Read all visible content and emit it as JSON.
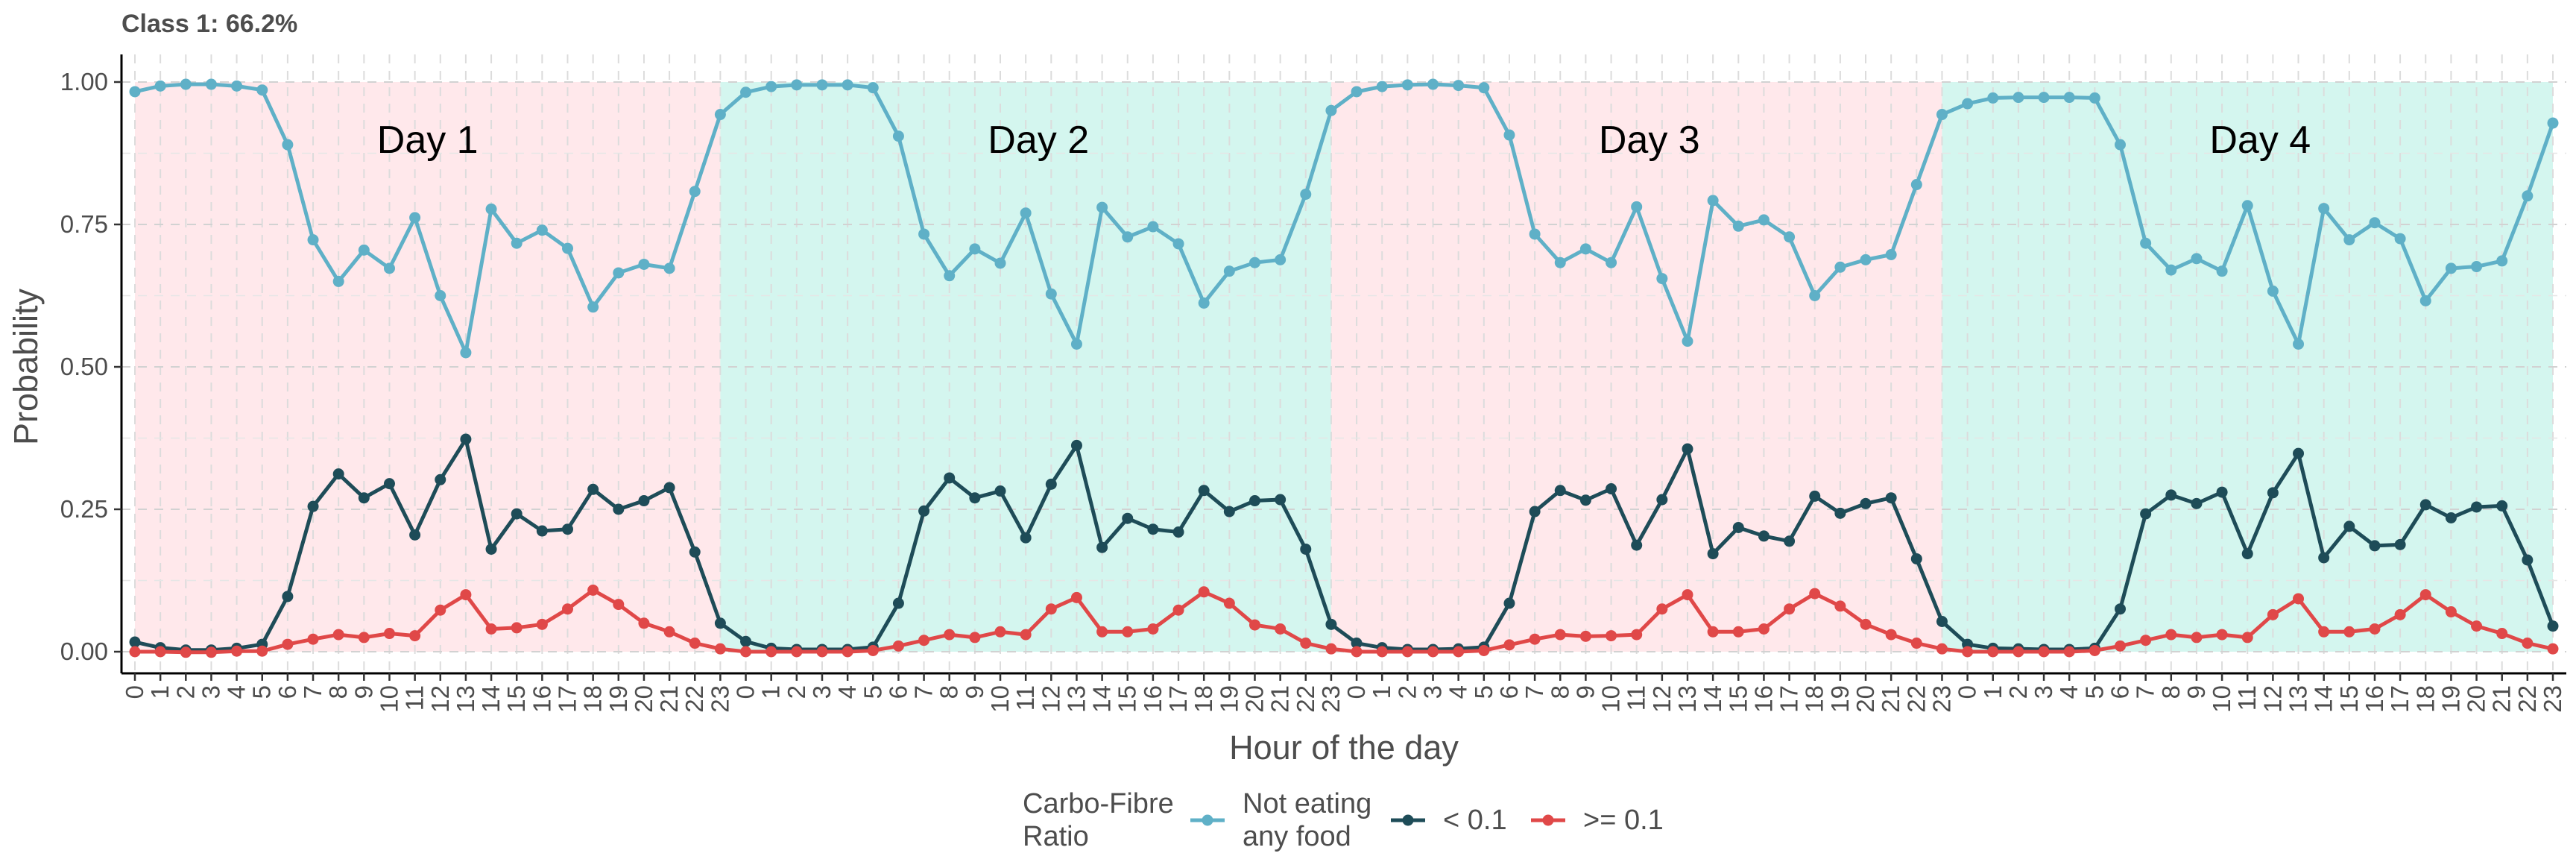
{
  "chart_data": {
    "type": "line",
    "title": "Class 1: 66.2%",
    "xlabel": "Hour of the day",
    "ylabel": "Probability",
    "ylim": [
      0,
      1
    ],
    "yticks": [
      "0.00",
      "0.25",
      "0.50",
      "0.75",
      "1.00"
    ],
    "ytick_values": [
      0,
      0.25,
      0.5,
      0.75,
      1.0
    ],
    "x_tick_labels": [
      "0",
      "1",
      "2",
      "3",
      "4",
      "5",
      "6",
      "7",
      "8",
      "9",
      "10",
      "11",
      "12",
      "13",
      "14",
      "15",
      "16",
      "17",
      "18",
      "19",
      "20",
      "21",
      "22",
      "23",
      "0",
      "1",
      "2",
      "3",
      "4",
      "5",
      "6",
      "7",
      "8",
      "9",
      "10",
      "11",
      "12",
      "13",
      "14",
      "15",
      "16",
      "17",
      "18",
      "19",
      "20",
      "21",
      "22",
      "23",
      "0",
      "1",
      "2",
      "3",
      "4",
      "5",
      "6",
      "7",
      "8",
      "9",
      "10",
      "11",
      "12",
      "13",
      "14",
      "15",
      "16",
      "17",
      "18",
      "19",
      "20",
      "21",
      "22",
      "23",
      "0",
      "1",
      "2",
      "3",
      "4",
      "5",
      "6",
      "7",
      "8",
      "9",
      "10",
      "11",
      "12",
      "13",
      "14",
      "15",
      "16",
      "17",
      "18",
      "19",
      "20",
      "21",
      "22",
      "23"
    ],
    "day_bands": [
      {
        "label": "Day 1",
        "color": "#FFE4E8"
      },
      {
        "label": "Day 2",
        "color": "#CDF4EC"
      },
      {
        "label": "Day 3",
        "color": "#FFE4E8"
      },
      {
        "label": "Day 4",
        "color": "#CDF4EC"
      }
    ],
    "grid": true,
    "legend": {
      "title": "Carbo-Fibre\nRatio",
      "position": "bottom"
    },
    "series": [
      {
        "name": "Not eating\nany food",
        "color": "#5FB0C7",
        "values": [
          0.983,
          0.993,
          0.996,
          0.996,
          0.993,
          0.986,
          0.89,
          0.723,
          0.65,
          0.705,
          0.673,
          0.762,
          0.625,
          0.525,
          0.777,
          0.717,
          0.74,
          0.708,
          0.605,
          0.665,
          0.68,
          0.673,
          0.808,
          0.943,
          0.982,
          0.992,
          0.995,
          0.995,
          0.995,
          0.99,
          0.905,
          0.733,
          0.66,
          0.707,
          0.682,
          0.77,
          0.628,
          0.54,
          0.78,
          0.728,
          0.746,
          0.716,
          0.612,
          0.668,
          0.683,
          0.688,
          0.803,
          0.95,
          0.983,
          0.992,
          0.995,
          0.996,
          0.994,
          0.99,
          0.907,
          0.733,
          0.683,
          0.707,
          0.683,
          0.781,
          0.655,
          0.545,
          0.792,
          0.747,
          0.758,
          0.728,
          0.625,
          0.675,
          0.688,
          0.697,
          0.82,
          0.943,
          0.962,
          0.972,
          0.973,
          0.973,
          0.973,
          0.972,
          0.89,
          0.717,
          0.67,
          0.69,
          0.668,
          0.783,
          0.633,
          0.54,
          0.778,
          0.723,
          0.753,
          0.725,
          0.616,
          0.673,
          0.676,
          0.686,
          0.8,
          0.928
        ]
      },
      {
        "name": "< 0.1",
        "color": "#1E4C58",
        "values": [
          0.017,
          0.007,
          0.003,
          0.003,
          0.006,
          0.013,
          0.097,
          0.255,
          0.312,
          0.27,
          0.295,
          0.205,
          0.302,
          0.373,
          0.18,
          0.242,
          0.212,
          0.215,
          0.285,
          0.25,
          0.265,
          0.288,
          0.175,
          0.05,
          0.018,
          0.006,
          0.004,
          0.004,
          0.004,
          0.008,
          0.085,
          0.247,
          0.305,
          0.27,
          0.282,
          0.2,
          0.294,
          0.362,
          0.183,
          0.234,
          0.215,
          0.21,
          0.283,
          0.246,
          0.265,
          0.267,
          0.18,
          0.048,
          0.015,
          0.007,
          0.004,
          0.004,
          0.005,
          0.008,
          0.085,
          0.246,
          0.283,
          0.266,
          0.286,
          0.187,
          0.267,
          0.356,
          0.172,
          0.218,
          0.203,
          0.194,
          0.273,
          0.243,
          0.26,
          0.27,
          0.163,
          0.053,
          0.013,
          0.006,
          0.005,
          0.004,
          0.004,
          0.006,
          0.075,
          0.242,
          0.275,
          0.26,
          0.28,
          0.172,
          0.279,
          0.348,
          0.165,
          0.22,
          0.186,
          0.188,
          0.258,
          0.235,
          0.254,
          0.256,
          0.161,
          0.045
        ]
      },
      {
        "name": ">= 0.1",
        "color": "#E04848",
        "values": [
          0.0,
          0.0,
          -0.001,
          -0.001,
          0.001,
          0.001,
          0.013,
          0.022,
          0.03,
          0.025,
          0.032,
          0.028,
          0.073,
          0.1,
          0.04,
          0.042,
          0.048,
          0.075,
          0.108,
          0.083,
          0.05,
          0.035,
          0.015,
          0.005,
          0.0,
          0.0,
          0.0,
          0.0,
          0.0,
          0.002,
          0.01,
          0.02,
          0.03,
          0.025,
          0.035,
          0.03,
          0.075,
          0.095,
          0.035,
          0.035,
          0.04,
          0.073,
          0.105,
          0.085,
          0.047,
          0.04,
          0.015,
          0.005,
          0.0,
          0.0,
          0.0,
          0.0,
          0.0,
          0.002,
          0.012,
          0.022,
          0.03,
          0.027,
          0.028,
          0.03,
          0.075,
          0.1,
          0.035,
          0.035,
          0.04,
          0.075,
          0.102,
          0.08,
          0.048,
          0.03,
          0.015,
          0.005,
          0.0,
          0.0,
          0.0,
          0.0,
          0.0,
          0.002,
          0.01,
          0.02,
          0.03,
          0.025,
          0.03,
          0.025,
          0.065,
          0.093,
          0.035,
          0.035,
          0.04,
          0.065,
          0.1,
          0.07,
          0.045,
          0.032,
          0.015,
          0.005
        ]
      }
    ]
  }
}
